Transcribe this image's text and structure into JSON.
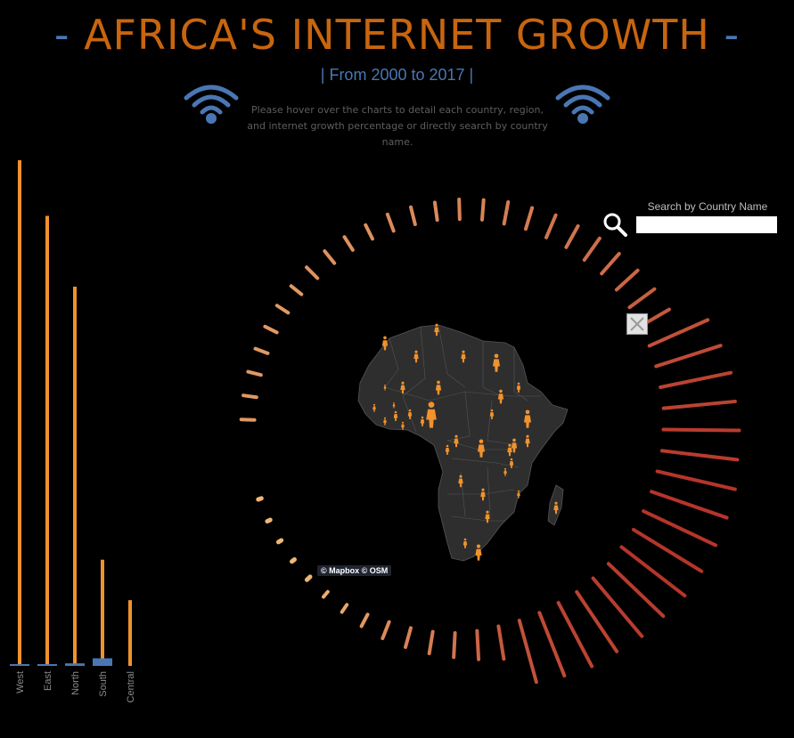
{
  "header": {
    "dash_left": "-",
    "title": "AFRICA'S INTERNET GROWTH",
    "dash_right": "-",
    "subtitle": "| From 2000 to 2017 |",
    "instructions": "Please hover over the charts to detail each country, region, and internet growth percentage or directly search by country name."
  },
  "icons": {
    "wifi": "wifi-icon",
    "search": "search-icon",
    "close": "close-icon",
    "person": "person-icon"
  },
  "colors": {
    "title": "#c8650f",
    "accent_blue": "#4a77b4",
    "bar_orange": "#f0922e",
    "radial_light": "#f4c27b",
    "radial_dark": "#b5352a",
    "land": "#2e2e2e",
    "border": "#555555"
  },
  "search": {
    "label": "Search by Country Name",
    "value": "",
    "placeholder": ""
  },
  "map": {
    "credit": "© Mapbox © OSM"
  },
  "chart_data": [
    {
      "type": "bar",
      "categories": [
        "West",
        "East",
        "North",
        "South",
        "Central"
      ],
      "series": [
        {
          "values": [
            100,
            89,
            75,
            21,
            13
          ]
        },
        {
          "values": [
            0.3,
            0.3,
            0.5,
            1.5,
            0
          ]
        }
      ],
      "ylim": [
        0,
        100
      ],
      "grid": false
    },
    {
      "type": "radial-bar",
      "count": 56,
      "values": [
        0.6,
        0.6,
        0.6,
        0.6,
        0.6,
        0.6,
        0.6,
        0.7,
        0.7,
        0.7,
        0.7,
        0.8,
        0.8,
        0.8,
        0.9,
        0.9,
        1.0,
        1.0,
        1.1,
        1.1,
        1.2,
        1.2,
        1.3,
        1.4,
        1.5,
        1.6,
        1.7,
        1.8,
        1.8,
        1.9,
        1.9,
        2.0,
        2.0,
        2.0,
        2.0,
        2.0,
        1.9,
        1.9,
        1.8,
        1.8,
        1.7,
        1.6,
        1.5,
        1.3,
        1.1,
        1.0,
        0.9,
        0.8,
        0.6,
        0.4,
        0.3,
        0.2,
        0.15,
        0.15,
        0.15,
        0.15
      ]
    }
  ]
}
